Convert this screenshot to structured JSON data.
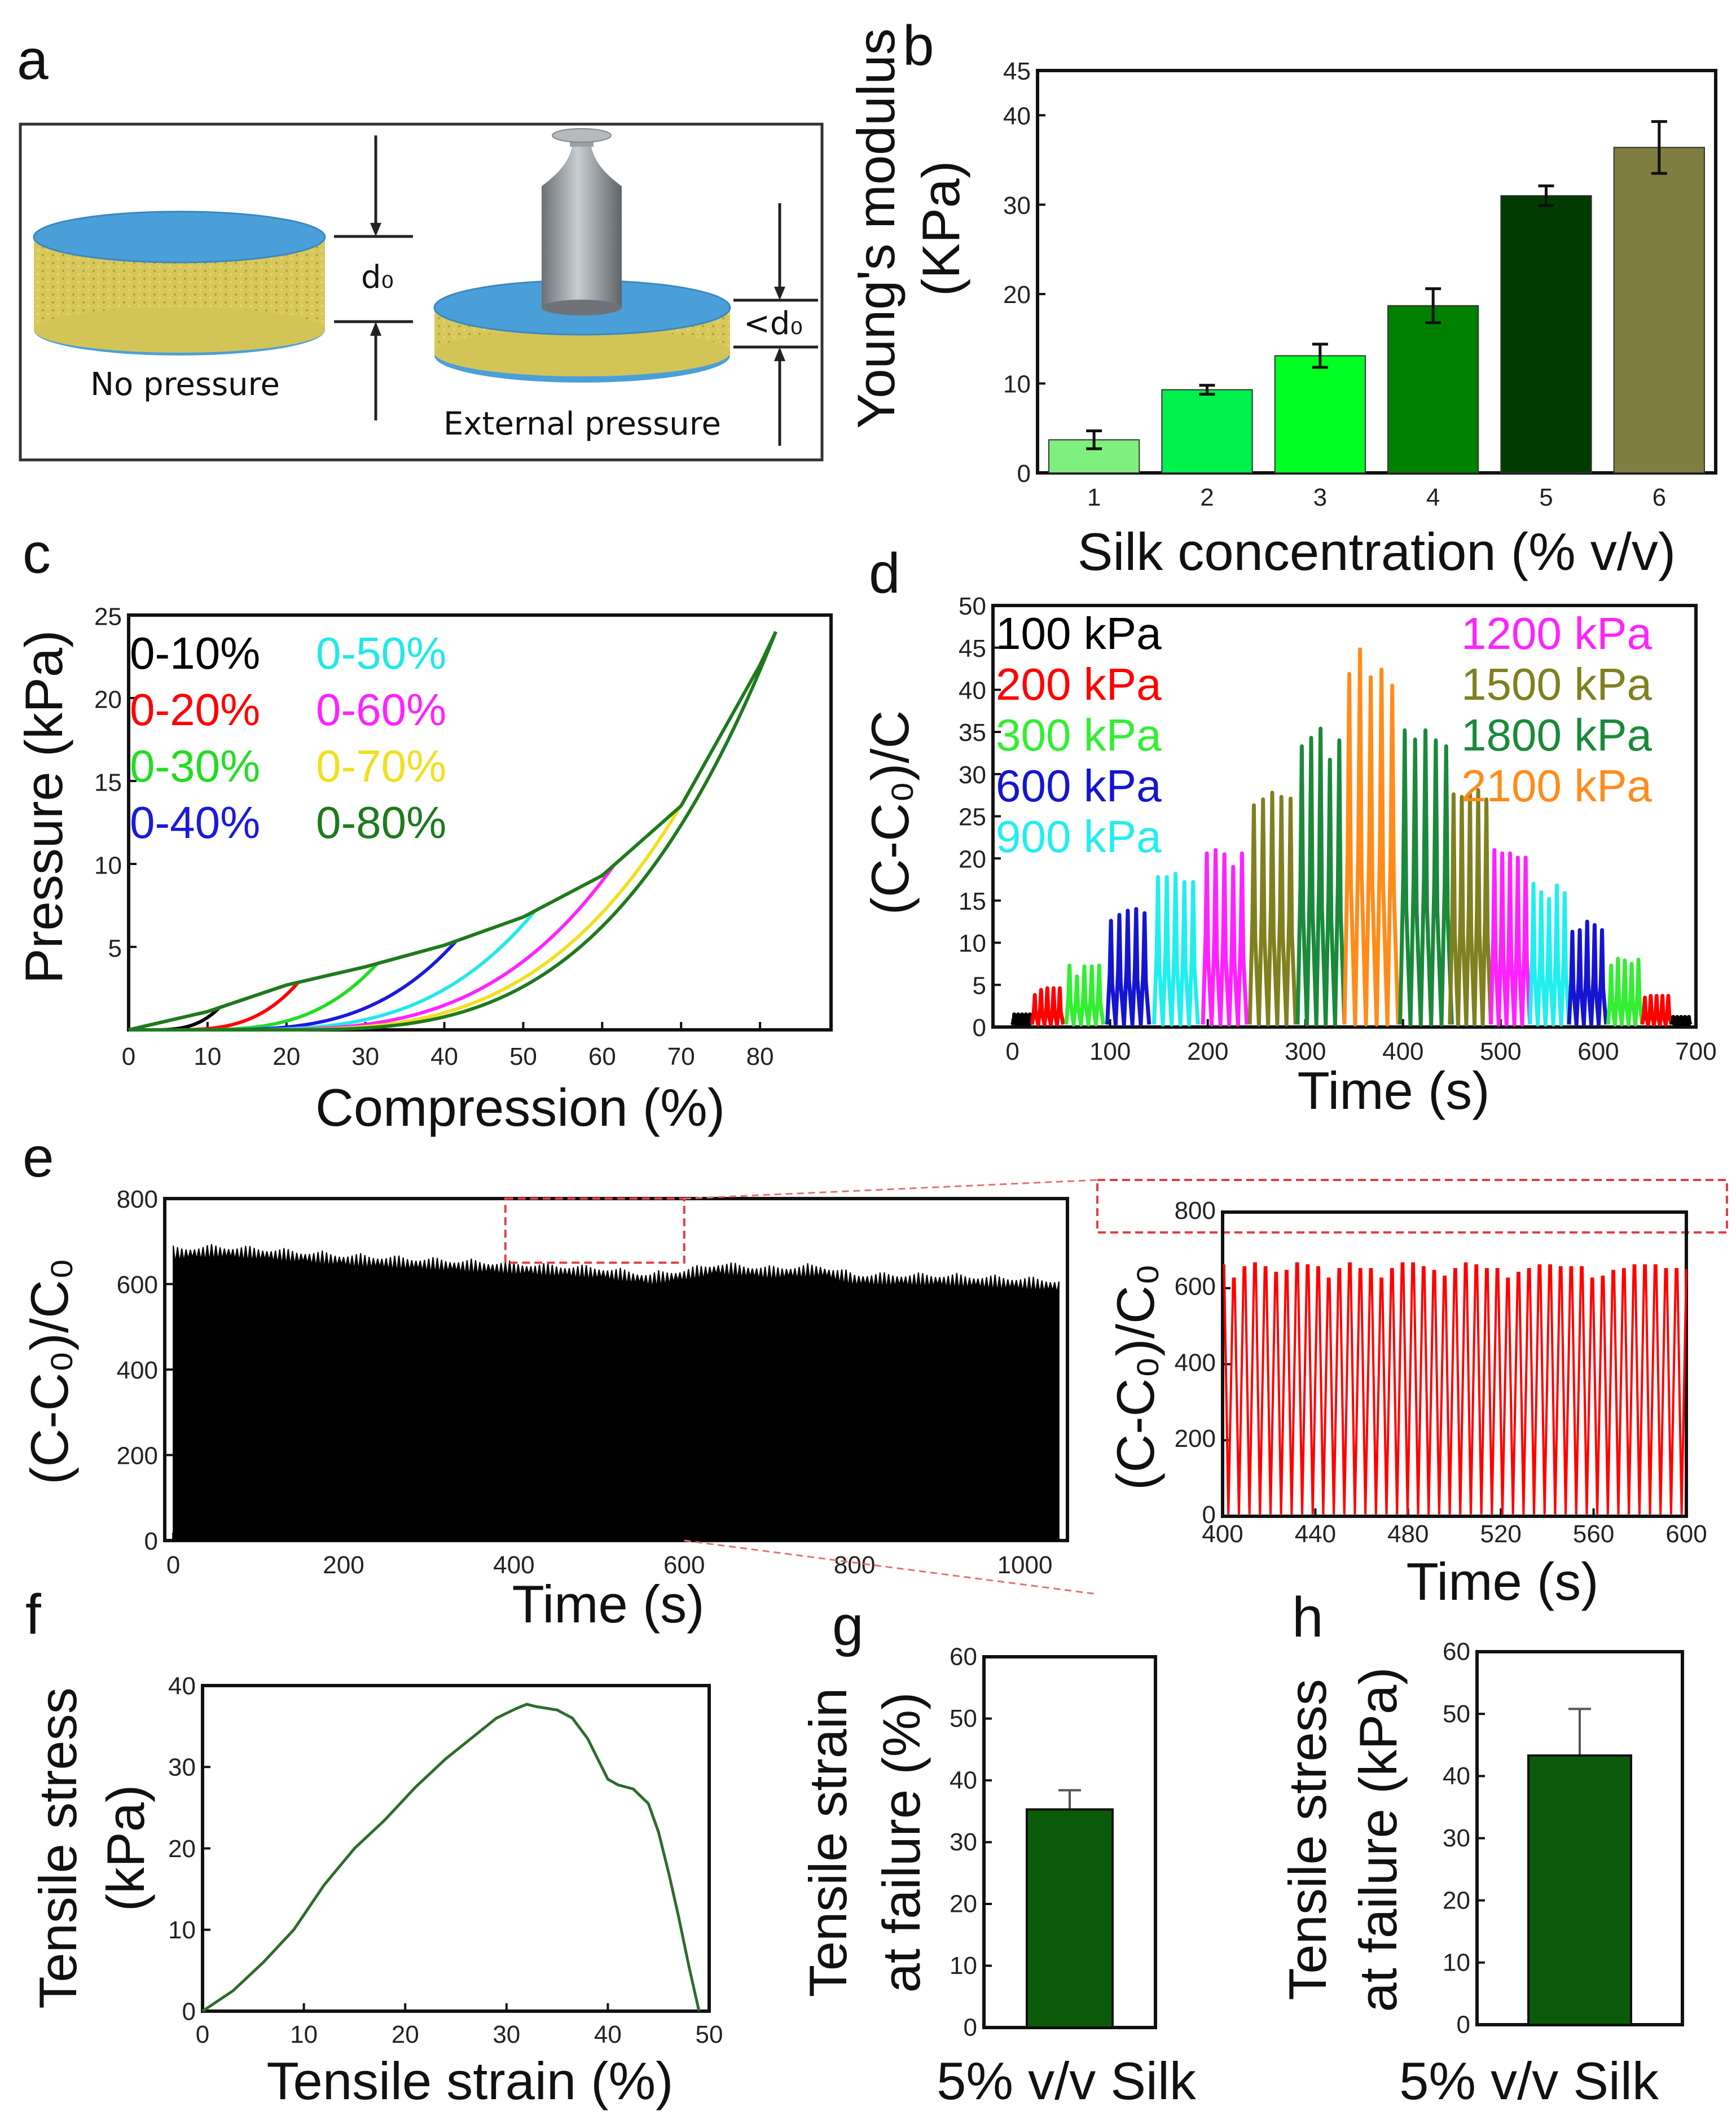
{
  "panel_labels": {
    "a": "a",
    "b": "b",
    "c": "c",
    "d": "d",
    "e": "e",
    "f": "f",
    "g": "g",
    "h": "h"
  },
  "panel_a": {
    "left_caption": "No pressure",
    "right_caption": "External pressure",
    "left_dimension": "d₀",
    "right_dimension": "<d₀",
    "colors": {
      "top_plate": "#4a9fd8",
      "sponge": "#d8c85a",
      "weight": "#8f9499"
    }
  },
  "chart_data": [
    {
      "id": "b",
      "type": "bar",
      "xlabel": "Silk concentration (% v/v)",
      "ylabel_lines": [
        "Young's modulus",
        "(KPa)"
      ],
      "categories": [
        "1",
        "2",
        "3",
        "4",
        "5",
        "6"
      ],
      "values": [
        3.7,
        9.3,
        13.1,
        18.7,
        31.0,
        36.4
      ],
      "errors": [
        1.0,
        0.5,
        1.3,
        1.9,
        1.1,
        2.9
      ],
      "colors": [
        "#7ef07e",
        "#00f04c",
        "#00ff22",
        "#008000",
        "#003c00",
        "#7f7d40"
      ],
      "ylim": [
        0,
        45
      ],
      "yticks": [
        0,
        10,
        20,
        30,
        40,
        45
      ]
    },
    {
      "id": "c",
      "type": "line",
      "xlabel": "Compression (%)",
      "ylabel": "Pressure (kPa)",
      "xlim": [
        0,
        89
      ],
      "ylim": [
        0,
        25
      ],
      "xticks": [
        0,
        10,
        20,
        30,
        40,
        50,
        60,
        70,
        80
      ],
      "yticks": [
        5,
        10,
        15,
        20,
        25
      ],
      "series": [
        {
          "name": "0-10%",
          "max_strain": 10,
          "color": "#000000"
        },
        {
          "name": "0-20%",
          "max_strain": 20,
          "color": "#ff0000"
        },
        {
          "name": "0-30%",
          "max_strain": 30,
          "color": "#22dd22"
        },
        {
          "name": "0-40%",
          "max_strain": 40,
          "color": "#1a1adc"
        },
        {
          "name": "0-50%",
          "max_strain": 50,
          "color": "#22e8e8"
        },
        {
          "name": "0-60%",
          "max_strain": 60,
          "color": "#ff22ff"
        },
        {
          "name": "0-70%",
          "max_strain": 70,
          "color": "#f0e020"
        },
        {
          "name": "0-80%",
          "max_strain": 80,
          "color": "#1e7a1e"
        }
      ],
      "loading_envelope": [
        [
          0,
          0
        ],
        [
          10,
          1.1
        ],
        [
          20,
          2.7
        ],
        [
          30,
          3.8
        ],
        [
          40,
          5.1
        ],
        [
          50,
          6.8
        ],
        [
          60,
          9.3
        ],
        [
          70,
          13.5
        ],
        [
          80,
          22
        ],
        [
          82,
          24
        ]
      ]
    },
    {
      "id": "d",
      "type": "line",
      "xlabel": "Time (s)",
      "ylabel": "(C-C₀)/C",
      "xlim": [
        -20,
        700
      ],
      "ylim": [
        0,
        50
      ],
      "xticks": [
        0,
        100,
        200,
        300,
        400,
        500,
        600,
        700
      ],
      "yticks": [
        0,
        5,
        10,
        15,
        20,
        25,
        30,
        35,
        40,
        45,
        50
      ],
      "legend": [
        {
          "name": "100 kPa",
          "color": "#000000"
        },
        {
          "name": "200 kPa",
          "color": "#ff0000"
        },
        {
          "name": "300 kPa",
          "color": "#33ee33"
        },
        {
          "name": "600 kPa",
          "color": "#1515d0"
        },
        {
          "name": "900 kPa",
          "color": "#22eeee"
        },
        {
          "name": "1200 kPa",
          "color": "#ff22ff"
        },
        {
          "name": "1500 kPa",
          "color": "#808020"
        },
        {
          "name": "1800 kPa",
          "color": "#1a8a3a"
        },
        {
          "name": "2100 kPa",
          "color": "#ff8c1a"
        }
      ],
      "segments": [
        {
          "pressure": "100 kPa",
          "t": [
            0,
            20
          ],
          "peaks": [
            1.5,
            1.5,
            1.5,
            1.5,
            1.5
          ]
        },
        {
          "pressure": "200 kPa",
          "t": [
            20,
            52
          ],
          "peaks": [
            3.8,
            4.4,
            4.6,
            4.6,
            4.6
          ]
        },
        {
          "pressure": "300 kPa",
          "t": [
            55,
            93
          ],
          "peaks": [
            7.3,
            6,
            7.2,
            7.2,
            7.3
          ]
        },
        {
          "pressure": "600 kPa",
          "t": [
            97,
            140
          ],
          "peaks": [
            12.6,
            13.3,
            13.8,
            14,
            13.5
          ]
        },
        {
          "pressure": "900 kPa",
          "t": [
            145,
            190
          ],
          "peaks": [
            17.8,
            17.8,
            18.2,
            17.2,
            17.2
          ]
        },
        {
          "pressure": "1200 kPa",
          "t": [
            195,
            240
          ],
          "peaks": [
            20.6,
            21,
            20.5,
            19,
            20.6
          ]
        },
        {
          "pressure": "1500 kPa",
          "t": [
            243,
            290
          ],
          "peaks": [
            26.3,
            27,
            27.8,
            27.3,
            27.1
          ]
        },
        {
          "pressure": "1800 kPa",
          "t": [
            292,
            340
          ],
          "peaks": [
            33.3,
            34.3,
            35.4,
            31.7,
            34
          ]
        },
        {
          "pressure": "2100 kPa",
          "t": [
            340,
            395
          ],
          "peaks": [
            41.9,
            44.8,
            41.5,
            42.4,
            40.5
          ]
        },
        {
          "pressure": "1800 kPa",
          "t": [
            397,
            450
          ],
          "peaks": [
            35.2,
            34.1,
            35.2,
            34,
            33.3
          ]
        },
        {
          "pressure": "1500 kPa",
          "t": [
            448,
            490
          ],
          "peaks": [
            27.6,
            27.3,
            27.6,
            28.1,
            27
          ]
        },
        {
          "pressure": "1200 kPa",
          "t": [
            490,
            530
          ],
          "peaks": [
            21,
            20.6,
            20.6,
            20.1,
            20.1
          ]
        },
        {
          "pressure": "900 kPa",
          "t": [
            530,
            570
          ],
          "peaks": [
            17,
            16,
            15.2,
            16.8,
            15.9
          ]
        },
        {
          "pressure": "600 kPa",
          "t": [
            570,
            608
          ],
          "peaks": [
            11.3,
            11.5,
            12.5,
            12.1,
            11.5
          ]
        },
        {
          "pressure": "300 kPa",
          "t": [
            610,
            645
          ],
          "peaks": [
            7.3,
            8.1,
            7.9,
            7.5,
            8
          ]
        },
        {
          "pressure": "200 kPa",
          "t": [
            645,
            675
          ],
          "peaks": [
            3.5,
            3.7,
            3.7,
            3.7,
            3.7
          ]
        },
        {
          "pressure": "100 kPa",
          "t": [
            675,
            695
          ],
          "peaks": [
            1.2,
            1.2,
            1.2,
            1.2,
            1.2
          ]
        }
      ]
    },
    {
      "id": "e",
      "type": "area",
      "xlabel": "Time (s)",
      "ylabel": "(C-C₀)/C₀",
      "xlim": [
        -10,
        1050
      ],
      "ylim": [
        0,
        800
      ],
      "xticks": [
        0,
        200,
        400,
        600,
        800,
        1000
      ],
      "yticks": [
        0,
        200,
        400,
        600,
        800
      ],
      "color": "#000000",
      "peak_envelope": [
        [
          0,
          690
        ],
        [
          50,
          695
        ],
        [
          100,
          690
        ],
        [
          200,
          675
        ],
        [
          300,
          665
        ],
        [
          400,
          655
        ],
        [
          500,
          645
        ],
        [
          560,
          630
        ],
        [
          600,
          640
        ],
        [
          640,
          655
        ],
        [
          700,
          645
        ],
        [
          760,
          650
        ],
        [
          800,
          630
        ],
        [
          900,
          628
        ],
        [
          1000,
          620
        ],
        [
          1040,
          615
        ]
      ],
      "zoom_region": {
        "x": [
          390,
          600
        ],
        "y": [
          650,
          800
        ]
      }
    },
    {
      "id": "e_inset",
      "type": "line",
      "xlabel": "Time (s)",
      "ylabel": "(C-C₀)/C₀",
      "xlim": [
        400,
        600
      ],
      "ylim": [
        0,
        800
      ],
      "xticks": [
        400,
        440,
        480,
        520,
        560,
        600
      ],
      "yticks": [
        0,
        200,
        400,
        600,
        800
      ],
      "color": "#ff0000",
      "peaks": [
        660,
        625,
        655,
        665,
        655,
        640,
        645,
        665,
        660,
        655,
        625,
        650,
        665,
        650,
        650,
        625,
        650,
        665,
        665,
        655,
        645,
        630,
        650,
        665,
        660,
        650,
        650,
        625,
        640,
        650,
        660,
        660,
        655,
        655,
        655,
        625,
        630,
        645,
        650,
        660,
        660,
        660,
        650,
        650
      ]
    },
    {
      "id": "f",
      "type": "line",
      "xlabel": "Tensile strain (%)",
      "ylabel_lines": [
        "Tensile stress",
        "(kPa)"
      ],
      "xlim": [
        0,
        50
      ],
      "ylim": [
        0,
        40
      ],
      "xticks": [
        0,
        10,
        20,
        30,
        40,
        50
      ],
      "yticks": [
        0,
        10,
        20,
        30,
        40
      ],
      "color": "#2e6b2e",
      "points": [
        [
          0,
          0
        ],
        [
          3,
          2.5
        ],
        [
          6,
          6
        ],
        [
          9,
          10
        ],
        [
          12,
          15.5
        ],
        [
          15,
          20
        ],
        [
          18,
          23.5
        ],
        [
          21,
          27.5
        ],
        [
          24,
          31
        ],
        [
          27,
          34
        ],
        [
          29,
          36
        ],
        [
          31,
          37.2
        ],
        [
          32,
          37.7
        ],
        [
          33,
          37.4
        ],
        [
          35,
          37
        ],
        [
          36.5,
          36
        ],
        [
          38,
          33.5
        ],
        [
          39,
          31
        ],
        [
          40,
          28.5
        ],
        [
          41,
          27.8
        ],
        [
          42.5,
          27.3
        ],
        [
          44,
          25.5
        ],
        [
          45,
          22
        ],
        [
          46,
          17
        ],
        [
          47,
          11.5
        ],
        [
          48,
          5.5
        ],
        [
          49,
          0
        ]
      ]
    },
    {
      "id": "g",
      "type": "bar",
      "xlabel": "5% v/v Silk",
      "ylabel_lines": [
        "Tensile strain",
        "at failure (%)"
      ],
      "values": [
        35.3
      ],
      "errors": [
        3.1
      ],
      "color": "#0a5a0a",
      "ylim": [
        0,
        60
      ],
      "yticks": [
        0,
        10,
        20,
        30,
        40,
        50,
        60
      ]
    },
    {
      "id": "h",
      "type": "bar",
      "xlabel": "5% v/v Silk",
      "ylabel_lines": [
        "Tensile stress",
        "at failure (kPa)"
      ],
      "values": [
        43.3
      ],
      "errors": [
        7.5
      ],
      "color": "#0a5a0a",
      "ylim": [
        0,
        60
      ],
      "yticks": [
        0,
        10,
        20,
        30,
        40,
        50,
        60
      ]
    }
  ]
}
